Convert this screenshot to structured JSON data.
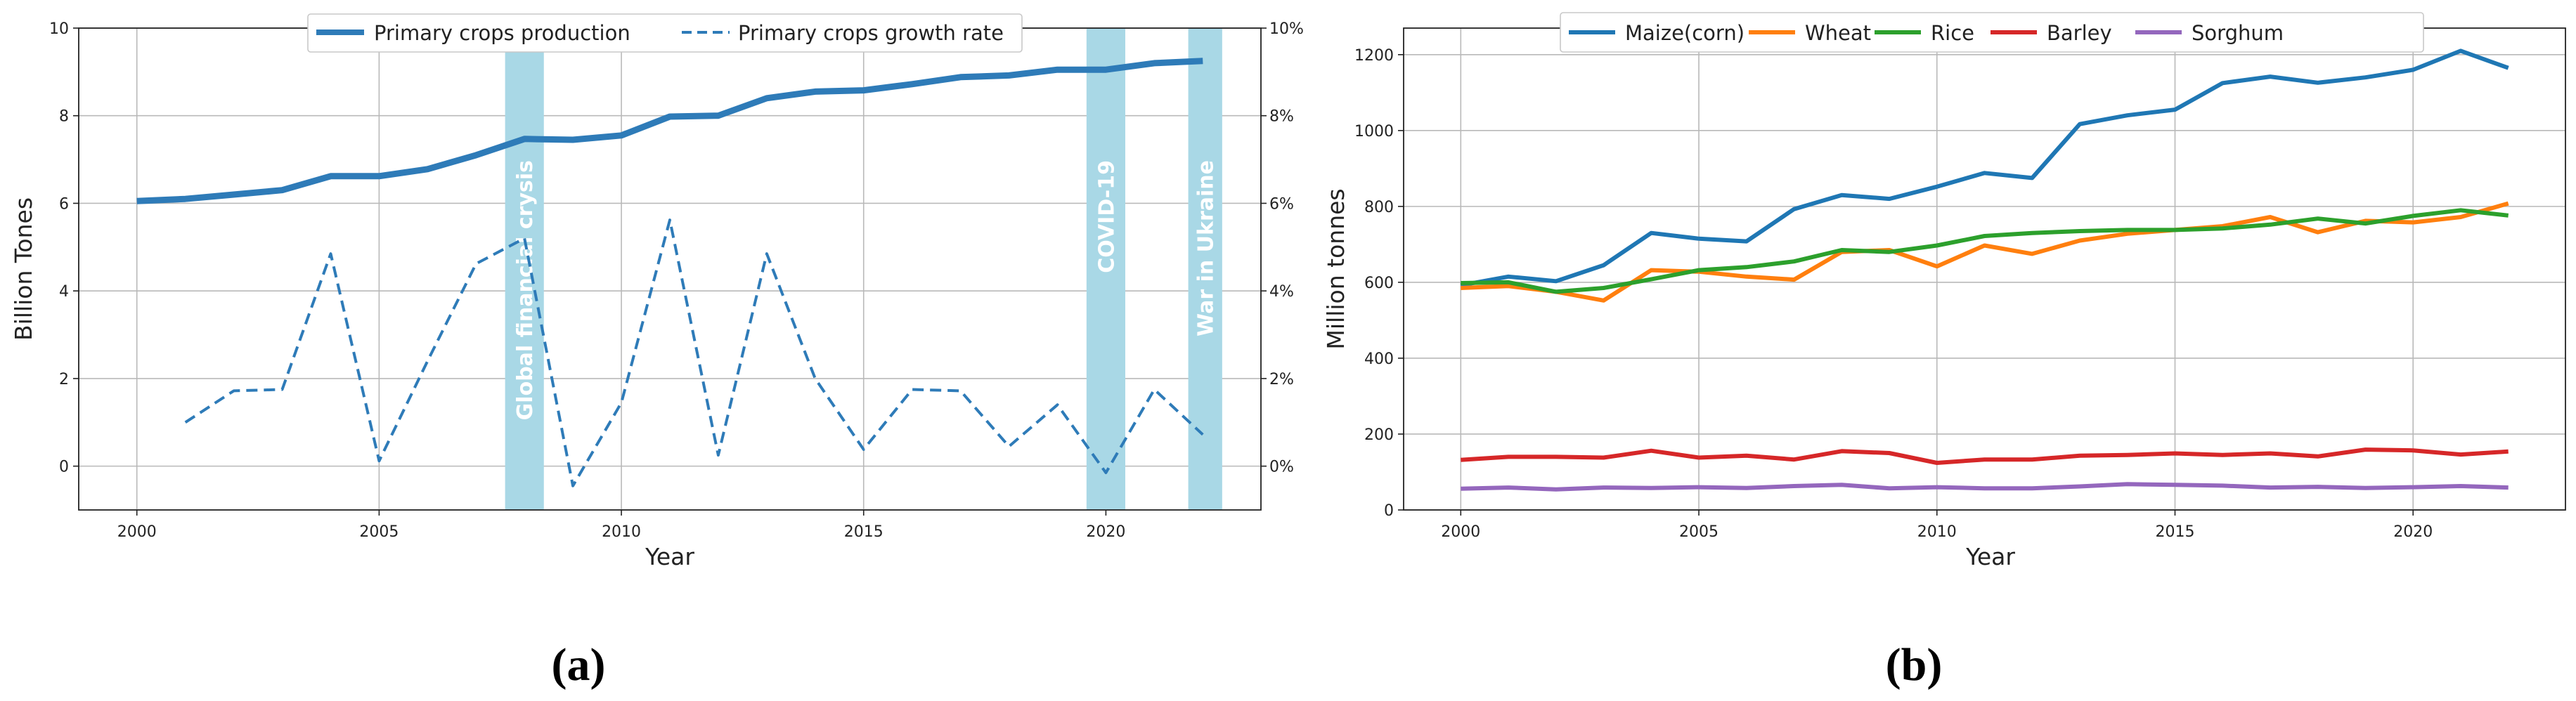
{
  "chart_data": [
    {
      "panel_label": "(a)",
      "type": "line",
      "xlabel": "Year",
      "ylabel": "Billion Tones",
      "xlim": [
        1998.8,
        2023.2
      ],
      "ylim": [
        -1,
        10
      ],
      "y2lim": [
        -1,
        10
      ],
      "xticks": [
        "2000",
        "2005",
        "2010",
        "2015",
        "2020"
      ],
      "yticks": [
        "0",
        "2",
        "4",
        "6",
        "8",
        "10"
      ],
      "y2ticks": [
        "0%",
        "2%",
        "4%",
        "6%",
        "8%",
        "10%"
      ],
      "legend_position": "top-center",
      "series": [
        {
          "name": "Primary crops production",
          "axis": "left",
          "style": "solid",
          "color": "#2e7bb8",
          "x": [
            2000,
            2001,
            2002,
            2003,
            2004,
            2005,
            2006,
            2007,
            2008,
            2009,
            2010,
            2011,
            2012,
            2013,
            2014,
            2015,
            2016,
            2017,
            2018,
            2019,
            2020,
            2021,
            2022
          ],
          "values": [
            6.05,
            6.1,
            6.2,
            6.3,
            6.62,
            6.62,
            6.78,
            7.1,
            7.47,
            7.45,
            7.55,
            7.98,
            8.0,
            8.4,
            8.55,
            8.58,
            8.72,
            8.88,
            8.92,
            9.05,
            9.05,
            9.2,
            9.25
          ]
        },
        {
          "name": "Primary crops growth rate",
          "axis": "right",
          "style": "dashed",
          "color": "#2e7bb8",
          "x": [
            2001,
            2002,
            2003,
            2004,
            2005,
            2006,
            2007,
            2008,
            2009,
            2010,
            2011,
            2012,
            2013,
            2014,
            2015,
            2016,
            2017,
            2018,
            2019,
            2020,
            2021,
            2022
          ],
          "values": [
            1.0,
            1.72,
            1.75,
            4.85,
            0.12,
            2.4,
            4.62,
            5.2,
            -0.45,
            1.45,
            5.62,
            0.25,
            4.85,
            2.0,
            0.38,
            1.75,
            1.72,
            0.45,
            1.4,
            -0.15,
            1.75,
            0.72
          ]
        }
      ],
      "annotations": [
        {
          "label": "Global financial crysis",
          "x_start": 2007.6,
          "x_end": 2008.4
        },
        {
          "label": "COVID-19",
          "x_start": 2019.6,
          "x_end": 2020.4
        },
        {
          "label": "War in Ukraine",
          "x_start": 2021.7,
          "x_end": 2022.4
        }
      ],
      "band_color": "#a9d8e6"
    },
    {
      "panel_label": "(b)",
      "type": "line",
      "xlabel": "Year",
      "ylabel": "Million tonnes",
      "xlim": [
        1998.8,
        2023.2
      ],
      "ylim": [
        0,
        1270
      ],
      "xticks": [
        "2000",
        "2005",
        "2010",
        "2015",
        "2020"
      ],
      "yticks": [
        "0",
        "200",
        "400",
        "600",
        "800",
        "1000",
        "1200"
      ],
      "legend_position": "top-center",
      "series": [
        {
          "name": "Maize(corn)",
          "color": "#1f77b4",
          "x": [
            2000,
            2001,
            2002,
            2003,
            2004,
            2005,
            2006,
            2007,
            2008,
            2009,
            2010,
            2011,
            2012,
            2013,
            2014,
            2015,
            2016,
            2017,
            2018,
            2019,
            2020,
            2021,
            2022
          ],
          "values": [
            592,
            615,
            603,
            645,
            730,
            715,
            708,
            793,
            830,
            820,
            852,
            888,
            875,
            1017,
            1040,
            1055,
            1125,
            1142,
            1126,
            1140,
            1160,
            1210,
            1165
          ]
        },
        {
          "name": "Wheat",
          "color": "#ff7f0e",
          "x": [
            2000,
            2001,
            2002,
            2003,
            2004,
            2005,
            2006,
            2007,
            2008,
            2009,
            2010,
            2011,
            2012,
            2013,
            2014,
            2015,
            2016,
            2017,
            2018,
            2019,
            2020,
            2021,
            2022
          ],
          "values": [
            585,
            590,
            575,
            552,
            632,
            628,
            615,
            607,
            680,
            685,
            642,
            697,
            675,
            710,
            728,
            738,
            748,
            772,
            732,
            762,
            758,
            772,
            808
          ]
        },
        {
          "name": "Rice",
          "color": "#2ca02c",
          "x": [
            2000,
            2001,
            2002,
            2003,
            2004,
            2005,
            2006,
            2007,
            2008,
            2009,
            2010,
            2011,
            2012,
            2013,
            2014,
            2015,
            2016,
            2017,
            2018,
            2019,
            2020,
            2021,
            2022
          ],
          "values": [
            598,
            600,
            575,
            585,
            608,
            632,
            640,
            655,
            685,
            680,
            697,
            722,
            730,
            735,
            738,
            738,
            742,
            752,
            768,
            755,
            775,
            790,
            776
          ]
        },
        {
          "name": "Barley",
          "color": "#d62728",
          "x": [
            2000,
            2001,
            2002,
            2003,
            2004,
            2005,
            2006,
            2007,
            2008,
            2009,
            2010,
            2011,
            2012,
            2013,
            2014,
            2015,
            2016,
            2017,
            2018,
            2019,
            2020,
            2021,
            2022
          ],
          "values": [
            132,
            140,
            140,
            138,
            156,
            138,
            143,
            133,
            155,
            150,
            124,
            133,
            133,
            143,
            145,
            149,
            145,
            149,
            141,
            159,
            157,
            146,
            154
          ]
        },
        {
          "name": "Sorghum",
          "color": "#9467bd",
          "x": [
            2000,
            2001,
            2002,
            2003,
            2004,
            2005,
            2006,
            2007,
            2008,
            2009,
            2010,
            2011,
            2012,
            2013,
            2014,
            2015,
            2016,
            2017,
            2018,
            2019,
            2020,
            2021,
            2022
          ],
          "values": [
            56,
            59,
            54,
            59,
            58,
            60,
            58,
            63,
            66,
            57,
            60,
            57,
            57,
            62,
            68,
            66,
            64,
            59,
            61,
            58,
            60,
            63,
            59
          ]
        }
      ]
    }
  ]
}
